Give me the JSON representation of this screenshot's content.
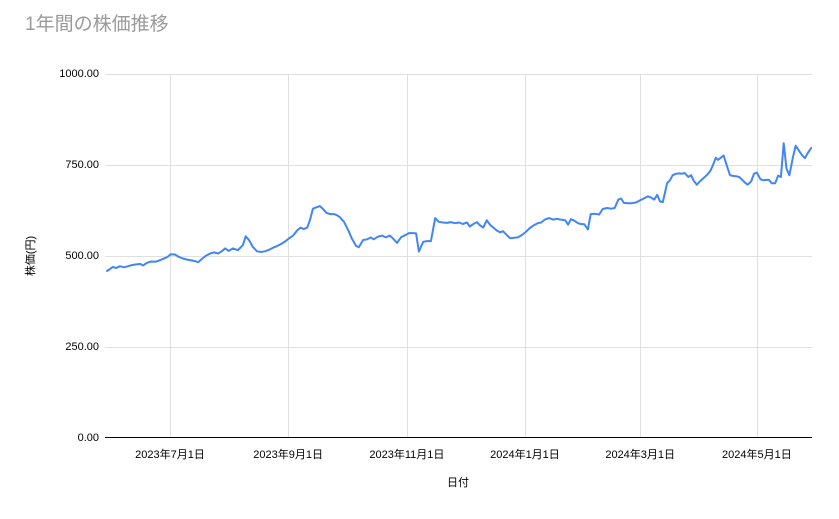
{
  "style": {
    "background": "#ffffff",
    "title_color": "#9a9a9a",
    "axis_label_color": "#000000",
    "grid_color": "#e0e0e0",
    "axis_line_color": "#000000",
    "series_color": "#4285f4"
  },
  "chart_data": {
    "type": "line",
    "title": "1年間の株価推移",
    "xlabel": "日付",
    "ylabel": "株価(円)",
    "x_domain_dates": [
      "2023-05-28",
      "2024-05-29"
    ],
    "ylim": [
      0,
      1000
    ],
    "grid": true,
    "legend": "none",
    "y_ticks": [
      {
        "value": 0,
        "label": "0.00"
      },
      {
        "value": 250,
        "label": "250.00"
      },
      {
        "value": 500,
        "label": "500.00"
      },
      {
        "value": 750,
        "label": "750.00"
      },
      {
        "value": 1000,
        "label": "1000.00"
      }
    ],
    "x_ticks": [
      {
        "f": 0.092,
        "label": "2023年7月1日"
      },
      {
        "f": 0.259,
        "label": "2023年9月1日"
      },
      {
        "f": 0.427,
        "label": "2023年11月1日"
      },
      {
        "f": 0.594,
        "label": "2024年1月1日"
      },
      {
        "f": 0.757,
        "label": "2024年3月1日"
      },
      {
        "f": 0.922,
        "label": "2024年5月1日"
      }
    ],
    "series": [
      {
        "name": "株価",
        "color": "#4285f4",
        "points": [
          [
            0.003,
            459
          ],
          [
            0.007,
            464
          ],
          [
            0.011,
            470
          ],
          [
            0.016,
            467
          ],
          [
            0.021,
            472
          ],
          [
            0.027,
            469
          ],
          [
            0.033,
            472
          ],
          [
            0.038,
            475
          ],
          [
            0.044,
            477
          ],
          [
            0.05,
            478
          ],
          [
            0.054,
            474
          ],
          [
            0.059,
            481
          ],
          [
            0.065,
            485
          ],
          [
            0.071,
            484
          ],
          [
            0.076,
            487
          ],
          [
            0.082,
            492
          ],
          [
            0.088,
            497
          ],
          [
            0.093,
            505
          ],
          [
            0.099,
            504
          ],
          [
            0.105,
            497
          ],
          [
            0.11,
            493
          ],
          [
            0.116,
            490
          ],
          [
            0.122,
            488
          ],
          [
            0.127,
            486
          ],
          [
            0.132,
            483
          ],
          [
            0.137,
            492
          ],
          [
            0.143,
            501
          ],
          [
            0.149,
            507
          ],
          [
            0.154,
            510
          ],
          [
            0.16,
            507
          ],
          [
            0.165,
            513
          ],
          [
            0.17,
            521
          ],
          [
            0.175,
            514
          ],
          [
            0.181,
            521
          ],
          [
            0.188,
            516
          ],
          [
            0.195,
            530
          ],
          [
            0.199,
            554
          ],
          [
            0.204,
            543
          ],
          [
            0.209,
            525
          ],
          [
            0.215,
            513
          ],
          [
            0.221,
            511
          ],
          [
            0.226,
            513
          ],
          [
            0.232,
            517
          ],
          [
            0.238,
            523
          ],
          [
            0.243,
            527
          ],
          [
            0.249,
            533
          ],
          [
            0.255,
            540
          ],
          [
            0.26,
            548
          ],
          [
            0.266,
            556
          ],
          [
            0.272,
            571
          ],
          [
            0.277,
            578
          ],
          [
            0.281,
            574
          ],
          [
            0.286,
            578
          ],
          [
            0.29,
            599
          ],
          [
            0.294,
            630
          ],
          [
            0.298,
            633
          ],
          [
            0.304,
            637
          ],
          [
            0.308,
            630
          ],
          [
            0.313,
            619
          ],
          [
            0.318,
            615
          ],
          [
            0.324,
            615
          ],
          [
            0.328,
            612
          ],
          [
            0.332,
            607
          ],
          [
            0.338,
            594
          ],
          [
            0.344,
            571
          ],
          [
            0.349,
            549
          ],
          [
            0.355,
            528
          ],
          [
            0.359,
            524
          ],
          [
            0.365,
            544
          ],
          [
            0.371,
            546
          ],
          [
            0.376,
            551
          ],
          [
            0.38,
            546
          ],
          [
            0.386,
            553
          ],
          [
            0.392,
            556
          ],
          [
            0.397,
            551
          ],
          [
            0.403,
            556
          ],
          [
            0.407,
            549
          ],
          [
            0.413,
            536
          ],
          [
            0.419,
            552
          ],
          [
            0.424,
            557
          ],
          [
            0.43,
            563
          ],
          [
            0.436,
            563
          ],
          [
            0.44,
            562
          ],
          [
            0.444,
            512
          ],
          [
            0.45,
            539
          ],
          [
            0.455,
            541
          ],
          [
            0.461,
            541
          ],
          [
            0.467,
            604
          ],
          [
            0.472,
            594
          ],
          [
            0.478,
            592
          ],
          [
            0.484,
            591
          ],
          [
            0.489,
            593
          ],
          [
            0.495,
            590
          ],
          [
            0.501,
            592
          ],
          [
            0.506,
            588
          ],
          [
            0.512,
            592
          ],
          [
            0.516,
            581
          ],
          [
            0.522,
            589
          ],
          [
            0.526,
            593
          ],
          [
            0.53,
            585
          ],
          [
            0.535,
            578
          ],
          [
            0.54,
            598
          ],
          [
            0.545,
            585
          ],
          [
            0.55,
            577
          ],
          [
            0.554,
            570
          ],
          [
            0.559,
            565
          ],
          [
            0.563,
            568
          ],
          [
            0.569,
            556
          ],
          [
            0.573,
            549
          ],
          [
            0.579,
            550
          ],
          [
            0.584,
            551
          ],
          [
            0.59,
            558
          ],
          [
            0.595,
            566
          ],
          [
            0.601,
            577
          ],
          [
            0.607,
            585
          ],
          [
            0.612,
            590
          ],
          [
            0.617,
            592
          ],
          [
            0.622,
            600
          ],
          [
            0.628,
            604
          ],
          [
            0.634,
            600
          ],
          [
            0.639,
            602
          ],
          [
            0.645,
            600
          ],
          [
            0.651,
            598
          ],
          [
            0.655,
            586
          ],
          [
            0.659,
            601
          ],
          [
            0.663,
            598
          ],
          [
            0.669,
            590
          ],
          [
            0.673,
            588
          ],
          [
            0.678,
            587
          ],
          [
            0.683,
            573
          ],
          [
            0.687,
            615
          ],
          [
            0.693,
            616
          ],
          [
            0.699,
            614
          ],
          [
            0.704,
            629
          ],
          [
            0.71,
            632
          ],
          [
            0.716,
            630
          ],
          [
            0.721,
            632
          ],
          [
            0.726,
            655
          ],
          [
            0.73,
            658
          ],
          [
            0.734,
            646
          ],
          [
            0.74,
            645
          ],
          [
            0.745,
            645
          ],
          [
            0.751,
            647
          ],
          [
            0.757,
            653
          ],
          [
            0.762,
            658
          ],
          [
            0.768,
            664
          ],
          [
            0.772,
            661
          ],
          [
            0.777,
            655
          ],
          [
            0.781,
            668
          ],
          [
            0.785,
            650
          ],
          [
            0.789,
            648
          ],
          [
            0.795,
            700
          ],
          [
            0.799,
            708
          ],
          [
            0.803,
            722
          ],
          [
            0.808,
            726
          ],
          [
            0.812,
            727
          ],
          [
            0.816,
            726
          ],
          [
            0.82,
            728
          ],
          [
            0.825,
            717
          ],
          [
            0.829,
            722
          ],
          [
            0.833,
            706
          ],
          [
            0.837,
            696
          ],
          [
            0.842,
            706
          ],
          [
            0.846,
            713
          ],
          [
            0.851,
            722
          ],
          [
            0.856,
            733
          ],
          [
            0.86,
            750
          ],
          [
            0.864,
            770
          ],
          [
            0.867,
            764
          ],
          [
            0.871,
            770
          ],
          [
            0.875,
            776
          ],
          [
            0.88,
            745
          ],
          [
            0.884,
            722
          ],
          [
            0.888,
            720
          ],
          [
            0.893,
            719
          ],
          [
            0.897,
            717
          ],
          [
            0.901,
            710
          ],
          [
            0.905,
            702
          ],
          [
            0.909,
            696
          ],
          [
            0.914,
            705
          ],
          [
            0.918,
            726
          ],
          [
            0.922,
            729
          ],
          [
            0.927,
            711
          ],
          [
            0.931,
            708
          ],
          [
            0.935,
            709
          ],
          [
            0.939,
            709
          ],
          [
            0.943,
            700
          ],
          [
            0.948,
            700
          ],
          [
            0.952,
            721
          ],
          [
            0.956,
            717
          ],
          [
            0.96,
            810
          ],
          [
            0.964,
            740
          ],
          [
            0.968,
            722
          ],
          [
            0.973,
            771
          ],
          [
            0.977,
            803
          ],
          [
            0.982,
            788
          ],
          [
            0.986,
            777
          ],
          [
            0.99,
            769
          ],
          [
            0.994,
            783
          ],
          [
            0.999,
            797
          ]
        ]
      }
    ]
  }
}
